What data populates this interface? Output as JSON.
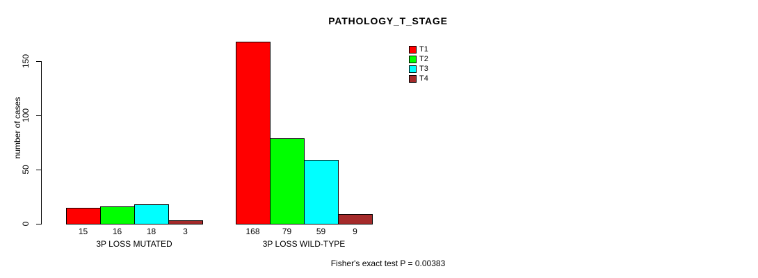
{
  "chart_data": {
    "type": "bar",
    "title": "PATHOLOGY_T_STAGE",
    "ylabel": "number of cases",
    "xlabel": "",
    "ylim": [
      0,
      175
    ],
    "yticks": [
      0,
      50,
      100,
      150
    ],
    "grid": false,
    "legend_position": "top-right",
    "categories": [
      "3P LOSS MUTATED",
      "3P LOSS WILD-TYPE"
    ],
    "series": [
      {
        "name": "T1",
        "color": "#FF0000",
        "values": [
          15,
          168
        ]
      },
      {
        "name": "T2",
        "color": "#00FF00",
        "values": [
          16,
          79
        ]
      },
      {
        "name": "T3",
        "color": "#00FFFF",
        "values": [
          18,
          59
        ]
      },
      {
        "name": "T4",
        "color": "#A52A2A",
        "values": [
          3,
          9
        ]
      }
    ],
    "bar_value_labels": [
      [
        15,
        16,
        18,
        3
      ],
      [
        168,
        79,
        59,
        9
      ]
    ],
    "annotation": "Fisher's exact test P = 0.00383"
  }
}
